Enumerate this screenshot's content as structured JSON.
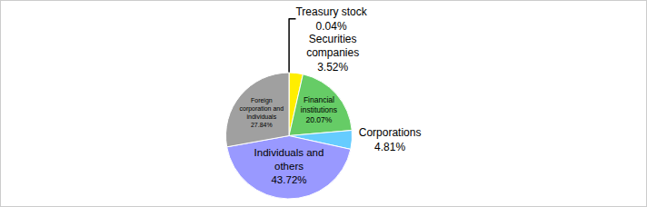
{
  "chart_data": {
    "type": "pie",
    "categories": [
      "Treasury stock",
      "Securities companies",
      "Financial institutions",
      "Corporations",
      "Individuals and others",
      "Foreign corporation and individuals"
    ],
    "values": [
      0.04,
      3.52,
      20.07,
      4.81,
      43.72,
      27.84
    ],
    "value_labels": [
      "0.04%",
      "3.52%",
      "20.07%",
      "4.81%",
      "43.72%",
      "27.84%"
    ],
    "colors": [
      "#444444",
      "#ffee00",
      "#66cc66",
      "#66ccff",
      "#9999ff",
      "#a0a0a0"
    ],
    "data_labels": true
  }
}
